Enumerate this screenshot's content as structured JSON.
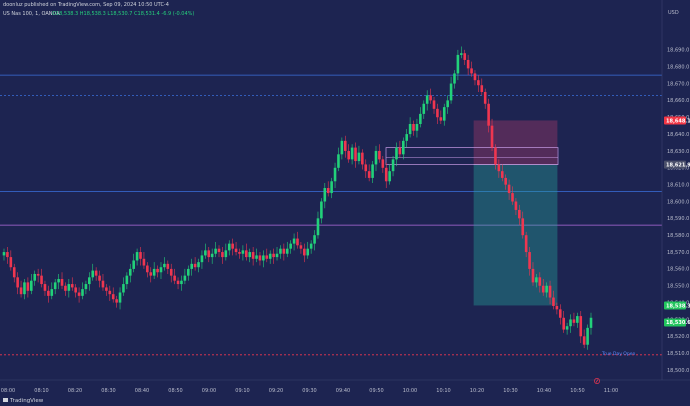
{
  "header": {
    "published": "doonluz published on TradingView.com, Sep 09, 2024 10:50 UTC-4",
    "symbol": "US Nas 100, 1, OANDA",
    "ohlc": "O18,538.3 H18,538.3 L18,530.7 C18,531.4 -6.9 (-0.04%)"
  },
  "currency": "USD",
  "brand": "TradingView",
  "colors": {
    "background": "#1d2451",
    "up": "#22d17a",
    "down": "#ef3650",
    "level_blue": "#3a6fdc",
    "level_purple": "#b46ce0"
  },
  "chart_data": {
    "type": "candlestick",
    "ylim": [
      18500,
      18700
    ],
    "y_ticks": [
      "18,690.0",
      "18,680.0",
      "18,670.0",
      "18,660.0",
      "18,650.0",
      "18,640.0",
      "18,630.0",
      "18,620.0",
      "18,610.0",
      "18,600.0",
      "18,590.0",
      "18,580.0",
      "18,570.0",
      "18,560.0",
      "18,550.0",
      "18,540.0",
      "18,530.0",
      "18,520.0",
      "18,510.0",
      "18,500.0"
    ],
    "x_ticks": [
      "08:00",
      "08:10",
      "08:20",
      "08:30",
      "08:40",
      "08:50",
      "09:00",
      "09:10",
      "09:20",
      "09:30",
      "09:40",
      "09:50",
      "10:00",
      "10:10",
      "10:20",
      "10:30",
      "10:40",
      "10:50",
      "11:00"
    ],
    "levels": [
      {
        "price": 18675,
        "style": "solid",
        "color": "#3a6fdc"
      },
      {
        "price": 18663,
        "style": "dashed",
        "color": "#3a6fdc"
      },
      {
        "price": 18606,
        "style": "solid",
        "color": "#3a6fdc"
      },
      {
        "price": 18586,
        "style": "solid",
        "color": "#b46ce0"
      },
      {
        "price": 18509,
        "style": "dashed",
        "color": "#ef3650"
      }
    ],
    "position": {
      "entry": 18621.9,
      "stop": 18648.1,
      "target": 18538.3,
      "start": "10:19",
      "end": "10:44"
    },
    "price_tags": [
      {
        "label": "18,648.1",
        "color": "#f23645"
      },
      {
        "label": "18,621.9",
        "color": "#4a4f6a"
      },
      {
        "label": "18,538.3",
        "color": "#22c55e"
      },
      {
        "label": "18,530.6",
        "color": "#22c55e"
      }
    ],
    "note": "True Day Open",
    "closes": [
      18570,
      18567,
      18561,
      18555,
      18549,
      18545,
      18552,
      18547,
      18553,
      18557,
      18556,
      18551,
      18547,
      18544,
      18548,
      18552,
      18554,
      18550,
      18547,
      18551,
      18549,
      18546,
      18544,
      18548,
      18551,
      18555,
      18559,
      18556,
      18553,
      18549,
      18547,
      18545,
      18542,
      18540,
      18546,
      18551,
      18556,
      18560,
      18565,
      18570,
      18566,
      18562,
      18558,
      18556,
      18560,
      18558,
      18561,
      18563,
      18560,
      18556,
      18553,
      18551,
      18553,
      18556,
      18560,
      18563,
      18561,
      18564,
      18568,
      18571,
      18567,
      18569,
      18572,
      18570,
      18567,
      18571,
      18575,
      18572,
      18570,
      18569,
      18571,
      18567,
      18570,
      18566,
      18568,
      18565,
      18568,
      18566,
      18569,
      18567,
      18569,
      18572,
      18569,
      18572,
      18575,
      18578,
      18574,
      18572,
      18568,
      18572,
      18575,
      18580,
      18590,
      18600,
      18608,
      18605,
      18612,
      18620,
      18628,
      18636,
      18630,
      18625,
      18632,
      18624,
      18629,
      18622,
      18618,
      18614,
      18622,
      18630,
      18625,
      18620,
      18612,
      18618,
      18625,
      18632,
      18628,
      18636,
      18640,
      18646,
      18642,
      18646,
      18652,
      18658,
      18663,
      18660,
      18655,
      18650,
      18648,
      18656,
      18660,
      18670,
      18676,
      18687,
      18688,
      18684,
      18679,
      18676,
      18672,
      18669,
      18665,
      18658,
      18645,
      18632,
      18622,
      18618,
      18614,
      18610,
      18605,
      18600,
      18595,
      18590,
      18580,
      18570,
      18560,
      18552,
      18555,
      18550,
      18546,
      18550,
      18543,
      18538,
      18536,
      18531,
      18524,
      18526,
      18530,
      18528,
      18532,
      18520,
      18515,
      18525,
      18531
    ]
  }
}
